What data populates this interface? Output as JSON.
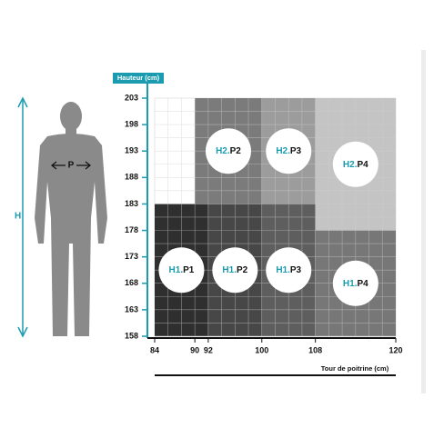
{
  "y_axis": {
    "label": "Hauteur (cm)",
    "ticks": [
      158,
      163,
      168,
      173,
      178,
      183,
      188,
      193,
      198,
      203
    ]
  },
  "x_axis": {
    "label": "Tour de poitrine (cm)",
    "ticks": [
      84,
      90,
      92,
      100,
      108,
      120
    ]
  },
  "figure": {
    "height_label": "H",
    "chest_label": "P"
  },
  "regions": [
    {
      "height": "H2.",
      "chest": "P2",
      "x": [
        90,
        100
      ],
      "y": [
        183,
        203
      ],
      "color": "#7b7b7b"
    },
    {
      "height": "H2.",
      "chest": "P3",
      "x": [
        100,
        108
      ],
      "y": [
        183,
        203
      ],
      "color": "#9c9c9c"
    },
    {
      "height": "H2.",
      "chest": "P4",
      "x": [
        108,
        120
      ],
      "y": [
        178,
        203
      ],
      "color": "#c4c4c4"
    },
    {
      "height": "H1.",
      "chest": "P1",
      "x": [
        84,
        92
      ],
      "y": [
        158,
        183
      ],
      "color": "#2f2f2f"
    },
    {
      "height": "H1.",
      "chest": "P2",
      "x": [
        92,
        100
      ],
      "y": [
        158,
        183
      ],
      "color": "#474747"
    },
    {
      "height": "H1.",
      "chest": "P3",
      "x": [
        100,
        108
      ],
      "y": [
        158,
        183
      ],
      "color": "#5e5e5e"
    },
    {
      "height": "H1.",
      "chest": "P4",
      "x": [
        108,
        120
      ],
      "y": [
        158,
        178
      ],
      "color": "#777777"
    }
  ]
}
